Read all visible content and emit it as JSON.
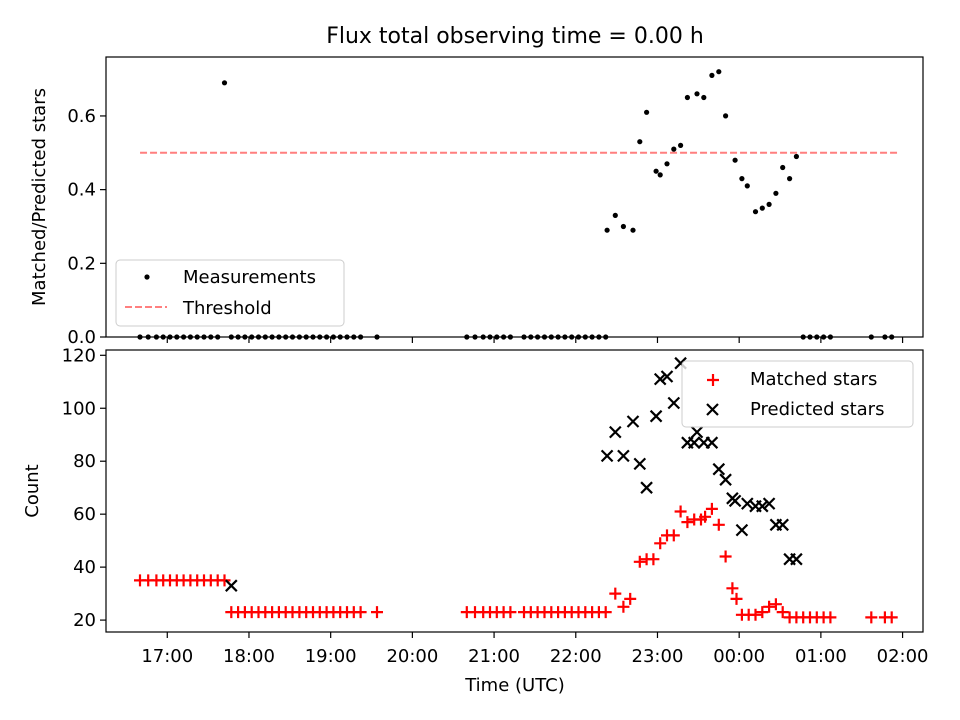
{
  "chart_data": [
    {
      "type": "scatter",
      "title": "Flux total observing time = 0.00 h",
      "xlabel": "",
      "ylabel": "Matched/Predicted stars",
      "ylim": [
        0,
        0.76
      ],
      "xlim": [
        "16:15",
        "02:15"
      ],
      "yticks": [
        "0.0",
        "0.2",
        "0.4",
        "0.6"
      ],
      "ytick_values": [
        0,
        0.2,
        0.4,
        0.6
      ],
      "legend_placement": "lower-left",
      "threshold": 0.5,
      "legend": {
        "measurements": "Measurements",
        "threshold": "Threshold"
      },
      "series": [
        {
          "name": "Measurements",
          "x": [
            "16:40",
            "16:46",
            "16:52",
            "16:57",
            "17:02",
            "17:07",
            "17:12",
            "17:17",
            "17:22",
            "17:27",
            "17:32",
            "17:37",
            "17:42",
            "17:47",
            "17:52",
            "17:57",
            "18:02",
            "18:07",
            "18:12",
            "18:17",
            "18:22",
            "18:27",
            "18:32",
            "18:37",
            "18:42",
            "18:47",
            "18:52",
            "18:57",
            "19:02",
            "19:07",
            "19:12",
            "19:17",
            "19:22",
            "19:34",
            "20:40",
            "20:46",
            "20:52",
            "20:57",
            "21:02",
            "21:07",
            "21:12",
            "21:22",
            "21:27",
            "21:32",
            "21:37",
            "21:42",
            "21:47",
            "21:52",
            "21:57",
            "22:02",
            "22:07",
            "22:12",
            "22:17",
            "22:22",
            "22:23",
            "22:29",
            "22:35",
            "22:42",
            "22:47",
            "22:52",
            "22:59",
            "23:02",
            "23:07",
            "23:12",
            "23:17",
            "23:22",
            "23:29",
            "23:34",
            "23:40",
            "23:45",
            "23:50",
            "23:57",
            "00:02",
            "00:06",
            "00:12",
            "00:17",
            "00:22",
            "00:27",
            "00:32",
            "00:37",
            "00:42",
            "00:47",
            "00:52",
            "00:57",
            "01:02",
            "01:07",
            "01:37",
            "01:47",
            "01:52"
          ],
          "y": [
            0,
            0,
            0,
            0,
            0,
            0,
            0,
            0,
            0,
            0,
            0,
            0,
            0.69,
            0,
            0,
            0,
            0,
            0,
            0,
            0,
            0,
            0,
            0,
            0,
            0,
            0,
            0,
            0,
            0,
            0,
            0,
            0,
            0,
            0,
            0,
            0,
            0,
            0,
            0,
            0,
            0,
            0,
            0,
            0,
            0,
            0,
            0,
            0,
            0,
            0,
            0,
            0,
            0,
            0,
            0.29,
            0.33,
            0.3,
            0.29,
            0.53,
            0.61,
            0.45,
            0.44,
            0.47,
            0.51,
            0.52,
            0.65,
            0.66,
            0.65,
            0.71,
            0.72,
            0.6,
            0.48,
            0.43,
            0.41,
            0.34,
            0.35,
            0.36,
            0.39,
            0.46,
            0.43,
            0.49,
            0,
            0,
            0,
            0,
            0,
            0,
            0,
            0
          ]
        }
      ]
    },
    {
      "type": "scatter",
      "title": "",
      "xlabel": "Time (UTC)",
      "ylabel": "Count",
      "ylim": [
        15.5,
        122
      ],
      "xlim": [
        "16:15",
        "02:15"
      ],
      "yticks": [
        "20",
        "40",
        "60",
        "80",
        "100",
        "120"
      ],
      "ytick_values": [
        20,
        40,
        60,
        80,
        100,
        120
      ],
      "xticks": [
        "17:00",
        "18:00",
        "19:00",
        "20:00",
        "21:00",
        "22:00",
        "23:00",
        "00:00",
        "01:00",
        "02:00"
      ],
      "legend_placement": "upper-right",
      "series": [
        {
          "name": "Matched stars",
          "color": "#ff0000",
          "x": [
            "16:40",
            "16:46",
            "16:52",
            "16:57",
            "17:02",
            "17:07",
            "17:12",
            "17:17",
            "17:22",
            "17:27",
            "17:32",
            "17:37",
            "17:42",
            "17:47",
            "17:52",
            "17:57",
            "18:02",
            "18:07",
            "18:12",
            "18:17",
            "18:22",
            "18:27",
            "18:32",
            "18:37",
            "18:42",
            "18:47",
            "18:52",
            "18:57",
            "19:02",
            "19:07",
            "19:12",
            "19:17",
            "19:22",
            "19:34",
            "20:40",
            "20:46",
            "20:52",
            "20:57",
            "21:02",
            "21:07",
            "21:12",
            "21:22",
            "21:27",
            "21:32",
            "21:37",
            "21:42",
            "21:47",
            "21:52",
            "21:57",
            "22:02",
            "22:07",
            "22:12",
            "22:17",
            "22:22",
            "22:29",
            "22:35",
            "22:40",
            "22:47",
            "22:52",
            "22:57",
            "23:02",
            "23:07",
            "23:12",
            "23:17",
            "23:22",
            "23:27",
            "23:32",
            "23:35",
            "23:40",
            "23:45",
            "23:50",
            "23:55",
            "23:58",
            "00:02",
            "00:07",
            "00:12",
            "00:17",
            "00:22",
            "00:27",
            "00:32",
            "00:37",
            "00:42",
            "00:47",
            "00:52",
            "00:57",
            "01:02",
            "01:07",
            "01:37",
            "01:47",
            "01:52"
          ],
          "y": [
            35,
            35,
            35,
            35,
            35,
            35,
            35,
            35,
            35,
            35,
            35,
            35,
            35,
            23,
            23,
            23,
            23,
            23,
            23,
            23,
            23,
            23,
            23,
            23,
            23,
            23,
            23,
            23,
            23,
            23,
            23,
            23,
            23,
            23,
            23,
            23,
            23,
            23,
            23,
            23,
            23,
            23,
            23,
            23,
            23,
            23,
            23,
            23,
            23,
            23,
            23,
            23,
            23,
            23,
            30,
            25,
            28,
            42,
            43,
            43,
            49,
            52,
            52,
            61,
            57,
            58,
            58,
            59,
            62,
            56,
            44,
            32,
            28,
            22,
            22,
            22,
            23,
            25,
            26,
            23,
            21,
            21,
            21,
            21,
            21,
            21,
            21,
            21,
            21,
            21
          ]
        },
        {
          "name": "Predicted stars",
          "color": "#000000",
          "x": [
            "17:47",
            "22:23",
            "22:29",
            "22:35",
            "22:42",
            "22:47",
            "22:52",
            "22:59",
            "23:02",
            "23:07",
            "23:12",
            "23:17",
            "23:22",
            "23:27",
            "23:29",
            "23:34",
            "23:40",
            "23:45",
            "23:50",
            "23:55",
            "23:57",
            "00:02",
            "00:06",
            "00:12",
            "00:17",
            "00:22",
            "00:27",
            "00:32",
            "00:37",
            "00:42"
          ],
          "y": [
            33,
            82,
            91,
            82,
            95,
            79,
            70,
            97,
            111,
            112,
            102,
            117,
            87,
            87,
            91,
            87,
            87,
            77,
            73,
            66,
            65,
            54,
            64,
            63,
            63,
            64,
            56,
            56,
            43,
            43
          ]
        }
      ],
      "legend": {
        "matched": "Matched stars",
        "predicted": "Predicted stars"
      }
    }
  ]
}
